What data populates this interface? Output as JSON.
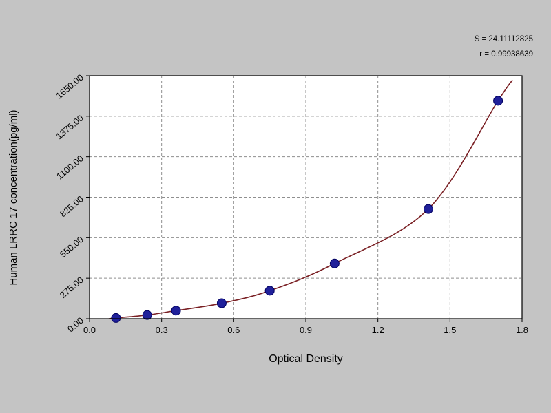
{
  "figure": {
    "background_color": "#c4c4c4",
    "plot_background": "#ffffff"
  },
  "annotations": {
    "line1": "S = 24.11112825",
    "line2": "r = 0.99938639"
  },
  "chart_data": {
    "type": "scatter",
    "title": "",
    "xlabel": "Optical Density",
    "ylabel": "Human LRRC 17 concentration(pg/ml)",
    "xlim": [
      0,
      1.8
    ],
    "ylim": [
      0,
      1650
    ],
    "xticks": [
      0,
      0.3,
      0.6,
      0.9,
      1.2,
      1.5,
      1.8
    ],
    "xtick_labels": [
      "0.0",
      "0.3",
      "0.6",
      "0.9",
      "1.2",
      "1.5",
      "1.8"
    ],
    "yticks": [
      0,
      275,
      550,
      825,
      1100,
      1375,
      1650
    ],
    "ytick_labels": [
      "0.00",
      "275.00",
      "550.00",
      "825.00",
      "1100.00",
      "1375.00",
      "1650.00"
    ],
    "grid": true,
    "grid_style": "dashed",
    "legend": null,
    "points": {
      "name": "standard-points",
      "x": [
        0.11,
        0.24,
        0.36,
        0.55,
        0.75,
        1.02,
        1.41,
        1.7
      ],
      "y": [
        5,
        25,
        55,
        105,
        190,
        375,
        745,
        1480
      ]
    },
    "fit_curve": {
      "name": "fitted-standard-curve",
      "shape": "exponential",
      "start": [
        0.08,
        0
      ],
      "end": [
        1.76,
        1620
      ]
    },
    "colors": {
      "point_fill": "#20209a",
      "point_stroke": "#000060",
      "curve": "#7a2024",
      "grid": "#8f8f8f",
      "axis": "#000000"
    }
  }
}
